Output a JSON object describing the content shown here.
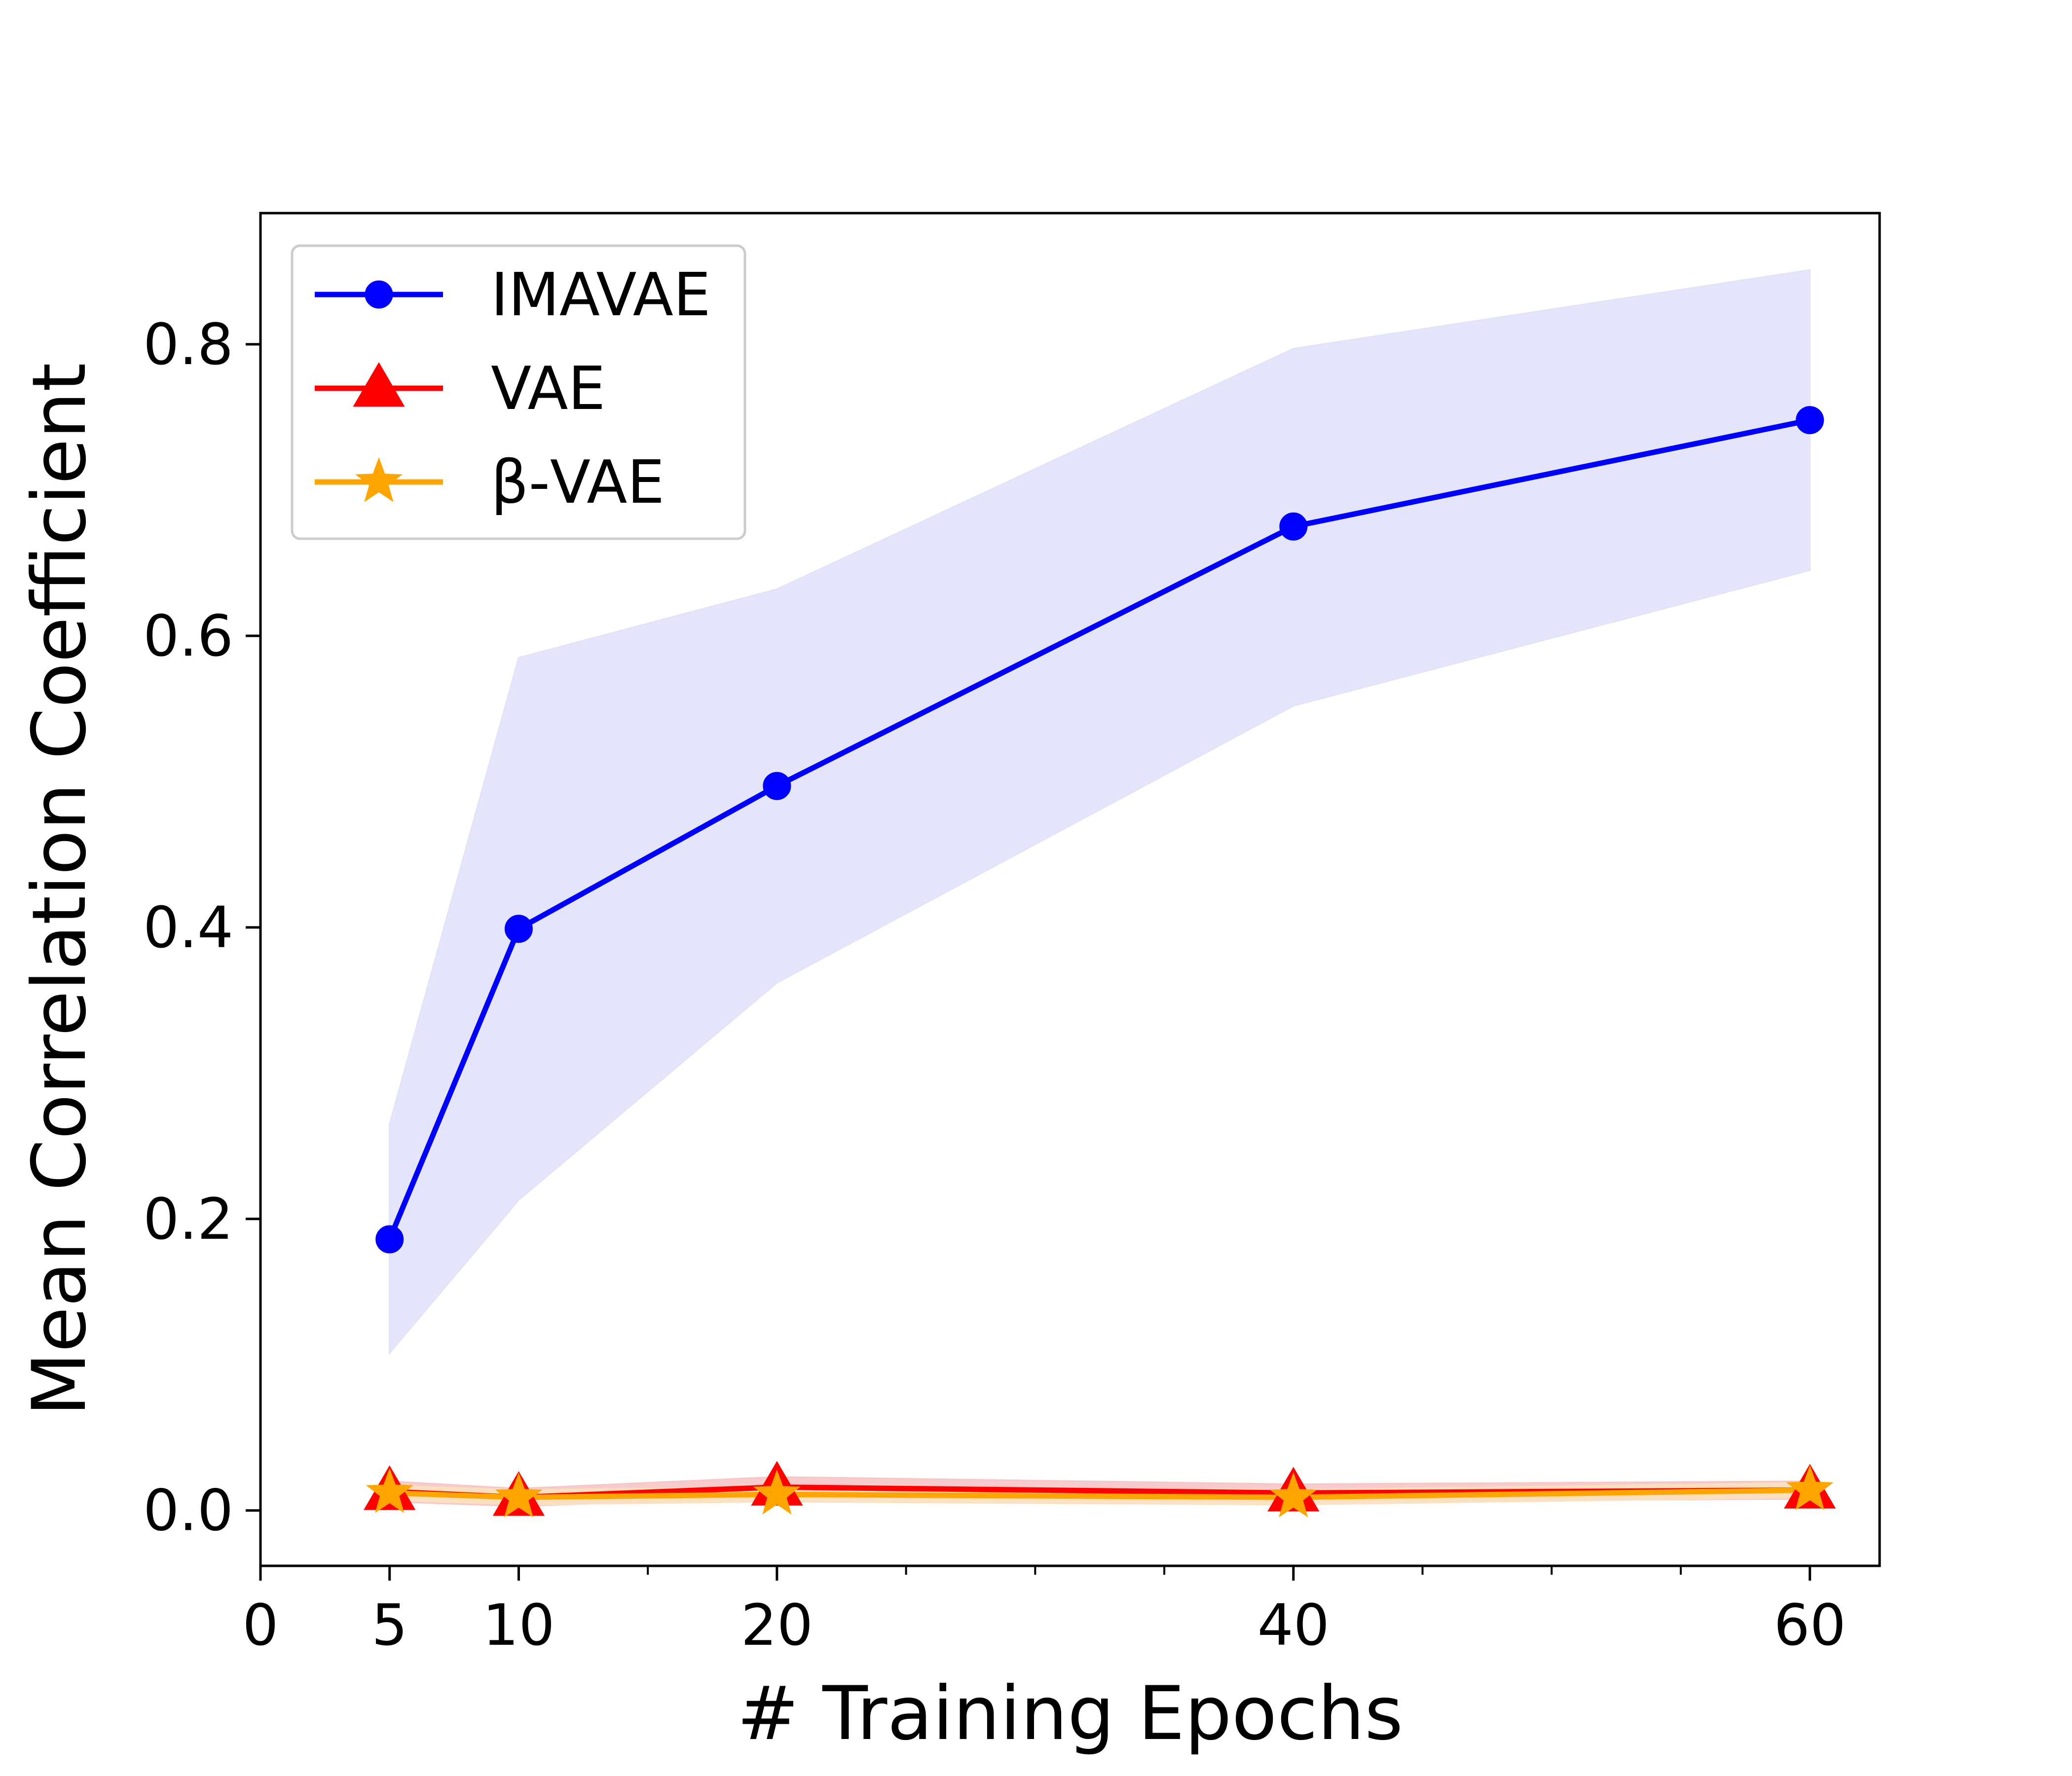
{
  "chart_data": {
    "type": "line",
    "xlabel": "# Training Epochs",
    "ylabel": "Mean Correlation Coefficient",
    "x_ticks": [
      0,
      5,
      10,
      20,
      40,
      60
    ],
    "x_minor_ticks": [
      15,
      25,
      30,
      35,
      45,
      50,
      55
    ],
    "y_ticks": [
      "0.0",
      "0.2",
      "0.4",
      "0.6",
      "0.8"
    ],
    "xlim": [
      0,
      62.7
    ],
    "ylim": [
      -0.038,
      0.89
    ],
    "grid": false,
    "legend": "top-left",
    "series": [
      {
        "name": "IMAVAE",
        "color": "#0000ff",
        "marker": "circle",
        "x": [
          5,
          10,
          20,
          40,
          60
        ],
        "y": [
          0.186,
          0.399,
          0.497,
          0.675,
          0.748
        ],
        "lower": [
          0.108,
          0.213,
          0.362,
          0.552,
          0.645
        ],
        "upper": [
          0.265,
          0.585,
          0.632,
          0.797,
          0.851
        ],
        "band_color": "#e2e2fb"
      },
      {
        "name": "VAE",
        "color": "#ff0000",
        "marker": "triangle",
        "x": [
          5,
          10,
          20,
          40,
          60
        ],
        "y": [
          0.013,
          0.009,
          0.016,
          0.012,
          0.014
        ],
        "lower": [
          0.006,
          0.003,
          0.009,
          0.006,
          0.008
        ],
        "upper": [
          0.02,
          0.015,
          0.023,
          0.018,
          0.02
        ],
        "band_color": "#f7c7c7"
      },
      {
        "name": "β-VAE",
        "color": "#ffa500",
        "marker": "star",
        "x": [
          5,
          10,
          20,
          40,
          60
        ],
        "y": [
          0.012,
          0.009,
          0.011,
          0.009,
          0.014
        ],
        "lower": [
          0.007,
          0.004,
          0.006,
          0.004,
          0.009
        ],
        "upper": [
          0.017,
          0.014,
          0.016,
          0.014,
          0.019
        ],
        "band_color": "#fbe1c0"
      }
    ]
  }
}
